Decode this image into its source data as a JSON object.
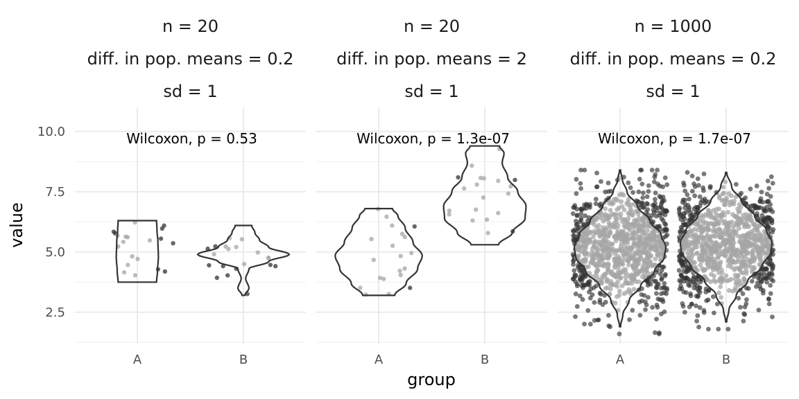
{
  "chart_data": {
    "type": "violin",
    "xlabel": "group",
    "ylabel": "value",
    "categories": [
      "A",
      "B"
    ],
    "ylim": [
      1.2,
      11.0
    ],
    "yticks": [
      2.5,
      5.0,
      7.5,
      10.0
    ],
    "ytick_labels": [
      "2.5",
      "5.0",
      "7.5",
      "10.0"
    ],
    "panels": [
      {
        "strip": [
          "n = 20",
          "diff. in pop. means = 0.2",
          "sd = 1"
        ],
        "annotation": "Wilcoxon, p = 0.53",
        "groups": [
          {
            "name": "A",
            "range": [
              3.75,
              6.3
            ],
            "density": [
              [
                3.75,
                0.42
              ],
              [
                4.2,
                0.44
              ],
              [
                4.8,
                0.46
              ],
              [
                5.4,
                0.45
              ],
              [
                5.9,
                0.43
              ],
              [
                6.3,
                0.42
              ]
            ],
            "n_points": 20
          },
          {
            "name": "B",
            "range": [
              3.2,
              6.1
            ],
            "density": [
              [
                3.2,
                0.03
              ],
              [
                3.5,
                0.12
              ],
              [
                3.9,
                0.05
              ],
              [
                4.3,
                0.12
              ],
              [
                4.6,
                0.55
              ],
              [
                4.9,
                1.0
              ],
              [
                5.2,
                0.55
              ],
              [
                5.5,
                0.35
              ],
              [
                5.8,
                0.25
              ],
              [
                6.1,
                0.18
              ]
            ],
            "n_points": 20
          }
        ]
      },
      {
        "strip": [
          "n = 20",
          "diff. in pop. means = 2",
          "sd = 1"
        ],
        "annotation": "Wilcoxon, p = 1.3e-07",
        "groups": [
          {
            "name": "A",
            "range": [
              3.2,
              6.8
            ],
            "density": [
              [
                3.2,
                0.35
              ],
              [
                3.7,
                0.6
              ],
              [
                4.3,
                0.85
              ],
              [
                4.85,
                0.95
              ],
              [
                5.4,
                0.75
              ],
              [
                6.0,
                0.58
              ],
              [
                6.5,
                0.42
              ],
              [
                6.8,
                0.3
              ]
            ],
            "n_points": 20
          },
          {
            "name": "B",
            "range": [
              5.3,
              9.4
            ],
            "density": [
              [
                5.3,
                0.3
              ],
              [
                5.8,
                0.6
              ],
              [
                6.4,
                0.88
              ],
              [
                6.9,
                0.9
              ],
              [
                7.5,
                0.72
              ],
              [
                8.1,
                0.5
              ],
              [
                8.7,
                0.38
              ],
              [
                9.1,
                0.42
              ],
              [
                9.4,
                0.32
              ]
            ],
            "n_points": 20
          }
        ]
      },
      {
        "strip": [
          "n = 1000",
          "diff. in pop. means = 0.2",
          "sd = 1"
        ],
        "annotation": "Wilcoxon, p = 1.7e-07",
        "groups": [
          {
            "name": "A",
            "range": [
              1.9,
              8.4
            ],
            "density": [
              [
                1.9,
                0.01
              ],
              [
                2.4,
                0.06
              ],
              [
                3.0,
                0.2
              ],
              [
                3.6,
                0.45
              ],
              [
                4.2,
                0.75
              ],
              [
                4.8,
                0.97
              ],
              [
                5.2,
                1.0
              ],
              [
                5.7,
                0.9
              ],
              [
                6.3,
                0.65
              ],
              [
                6.9,
                0.38
              ],
              [
                7.5,
                0.15
              ],
              [
                8.0,
                0.05
              ],
              [
                8.4,
                0.01
              ]
            ],
            "n_points": 1000
          },
          {
            "name": "B",
            "range": [
              2.1,
              8.3
            ],
            "density": [
              [
                2.1,
                0.01
              ],
              [
                2.6,
                0.06
              ],
              [
                3.2,
                0.22
              ],
              [
                3.8,
                0.47
              ],
              [
                4.4,
                0.78
              ],
              [
                5.0,
                0.98
              ],
              [
                5.4,
                1.0
              ],
              [
                5.9,
                0.88
              ],
              [
                6.5,
                0.62
              ],
              [
                7.1,
                0.34
              ],
              [
                7.7,
                0.12
              ],
              [
                8.3,
                0.01
              ]
            ],
            "n_points": 1000
          }
        ]
      }
    ]
  }
}
